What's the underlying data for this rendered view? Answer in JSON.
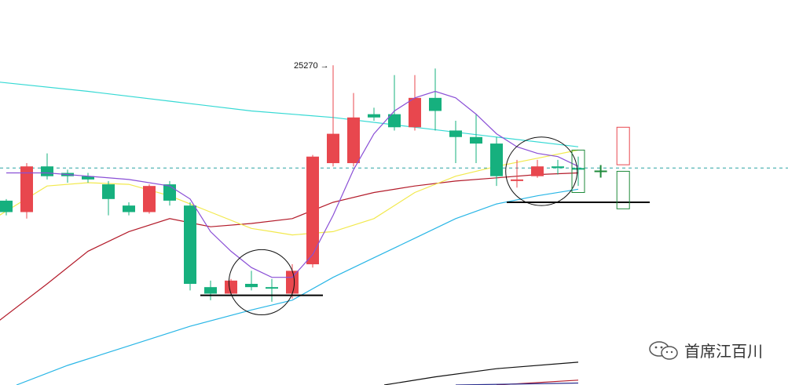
{
  "chart_data": {
    "type": "candlestick",
    "annotation": {
      "text": "25270 →",
      "price": 25270
    },
    "watermark": "首席江百川",
    "colors": {
      "up": "#e8474e",
      "down": "#16b07e",
      "ma_purple": "#8a4fd6",
      "ma_yellow": "#f2e94e",
      "ma_red": "#b31b2a",
      "ma_blue": "#29b6e6",
      "ma_cyan": "#36d9d4",
      "dashed_level": "#2aa3a3",
      "support_line": "#000000"
    },
    "ylim": [
      24290,
      25470
    ],
    "candles": [
      {
        "o": 24855,
        "c": 24820,
        "h": 24860,
        "l": 24810
      },
      {
        "o": 24820,
        "c": 24960,
        "h": 24970,
        "l": 24800
      },
      {
        "o": 24960,
        "c": 24930,
        "h": 25000,
        "l": 24920
      },
      {
        "o": 24940,
        "c": 24930,
        "h": 24950,
        "l": 24910
      },
      {
        "o": 24930,
        "c": 24920,
        "h": 24940,
        "l": 24910
      },
      {
        "o": 24905,
        "c": 24860,
        "h": 24915,
        "l": 24810
      },
      {
        "o": 24840,
        "c": 24820,
        "h": 24850,
        "l": 24810
      },
      {
        "o": 24820,
        "c": 24900,
        "h": 24905,
        "l": 24815
      },
      {
        "o": 24905,
        "c": 24855,
        "h": 24915,
        "l": 24840
      },
      {
        "o": 24840,
        "c": 24600,
        "h": 24850,
        "l": 24580
      },
      {
        "o": 24590,
        "c": 24570,
        "h": 24610,
        "l": 24550
      },
      {
        "o": 24570,
        "c": 24610,
        "h": 24615,
        "l": 24565
      },
      {
        "o": 24600,
        "c": 24590,
        "h": 24640,
        "l": 24580
      },
      {
        "o": 24590,
        "c": 24588,
        "h": 24615,
        "l": 24545
      },
      {
        "o": 24570,
        "c": 24640,
        "h": 24660,
        "l": 24555
      },
      {
        "o": 24660,
        "c": 24990,
        "h": 24995,
        "l": 24650
      },
      {
        "o": 24970,
        "c": 25060,
        "h": 25270,
        "l": 24960
      },
      {
        "o": 24970,
        "c": 25110,
        "h": 25185,
        "l": 24960
      },
      {
        "o": 25120,
        "c": 25110,
        "h": 25140,
        "l": 25100
      },
      {
        "o": 25120,
        "c": 25080,
        "h": 25240,
        "l": 25070
      },
      {
        "o": 25080,
        "c": 25170,
        "h": 25240,
        "l": 25070
      },
      {
        "o": 25170,
        "c": 25130,
        "h": 25260,
        "l": 25070
      },
      {
        "o": 25070,
        "c": 25050,
        "h": 25100,
        "l": 24970
      },
      {
        "o": 25050,
        "c": 25030,
        "h": 25120,
        "l": 24970
      },
      {
        "o": 25030,
        "c": 24930,
        "h": 25050,
        "l": 24900
      },
      {
        "o": 24920,
        "c": 24920,
        "h": 24980,
        "l": 24895
      },
      {
        "o": 24930,
        "c": 24960,
        "h": 24980,
        "l": 24925
      },
      {
        "o": 24960,
        "c": 24955,
        "h": 24980,
        "l": 24935
      },
      {
        "o": 24955,
        "c": 24950,
        "h": 24990,
        "l": 24900
      }
    ],
    "ma_purple": [
      [
        0,
        24940
      ],
      [
        2,
        24940
      ],
      [
        4,
        24930
      ],
      [
        6,
        24920
      ],
      [
        8,
        24900
      ],
      [
        9,
        24860
      ],
      [
        10,
        24760
      ],
      [
        11,
        24700
      ],
      [
        12,
        24650
      ],
      [
        13,
        24620
      ],
      [
        14,
        24620
      ],
      [
        15,
        24690
      ],
      [
        16,
        24810
      ],
      [
        17,
        24950
      ],
      [
        18,
        25060
      ],
      [
        19,
        25130
      ],
      [
        20,
        25170
      ],
      [
        21,
        25190
      ],
      [
        22,
        25170
      ],
      [
        23,
        25120
      ],
      [
        24,
        25060
      ],
      [
        25,
        25020
      ],
      [
        26,
        25000
      ],
      [
        27,
        24990
      ],
      [
        28,
        24960
      ]
    ],
    "ma_yellow": [
      [
        -0.6,
        24800
      ],
      [
        2,
        24900
      ],
      [
        4,
        24910
      ],
      [
        6,
        24905
      ],
      [
        8,
        24870
      ],
      [
        10,
        24820
      ],
      [
        12,
        24770
      ],
      [
        13,
        24760
      ],
      [
        14,
        24750
      ],
      [
        16,
        24760
      ],
      [
        18,
        24800
      ],
      [
        20,
        24880
      ],
      [
        22,
        24930
      ],
      [
        24,
        24960
      ],
      [
        26,
        24985
      ],
      [
        28,
        25010
      ]
    ],
    "ma_red": [
      [
        -0.6,
        24475
      ],
      [
        2,
        24600
      ],
      [
        4,
        24700
      ],
      [
        6,
        24760
      ],
      [
        8,
        24800
      ],
      [
        10,
        24775
      ],
      [
        12,
        24785
      ],
      [
        14,
        24800
      ],
      [
        16,
        24850
      ],
      [
        18,
        24880
      ],
      [
        20,
        24900
      ],
      [
        22,
        24915
      ],
      [
        24,
        24925
      ],
      [
        26,
        24935
      ],
      [
        28,
        24940
      ]
    ],
    "ma_blue": [
      [
        0.5,
        24290
      ],
      [
        3,
        24350
      ],
      [
        6,
        24410
      ],
      [
        9,
        24470
      ],
      [
        12,
        24520
      ],
      [
        14,
        24550
      ],
      [
        16,
        24620
      ],
      [
        18,
        24680
      ],
      [
        20,
        24740
      ],
      [
        22,
        24800
      ],
      [
        24,
        24845
      ],
      [
        26,
        24870
      ],
      [
        28,
        24890
      ]
    ],
    "ma_cyan": [
      [
        -0.6,
        25220
      ],
      [
        4,
        25190
      ],
      [
        8,
        25160
      ],
      [
        12,
        25130
      ],
      [
        16,
        25110
      ],
      [
        20,
        25080
      ],
      [
        24,
        25050
      ],
      [
        28,
        25020
      ]
    ],
    "ma_black": [
      [
        18.5,
        24290
      ],
      [
        21,
        24315
      ],
      [
        24,
        24340
      ],
      [
        28,
        24360
      ]
    ],
    "ma_darkred": [
      [
        24,
        24290
      ],
      [
        28,
        24305
      ]
    ],
    "ma_navy": [
      [
        22,
        24290
      ],
      [
        28,
        24296
      ]
    ],
    "dashed_level": 24955,
    "support_levels": [
      {
        "from": 9.5,
        "to": 15.5,
        "price": 24565
      },
      {
        "from": 24.5,
        "to": 31.5,
        "price": 24850
      }
    ],
    "ellipses": [
      {
        "cx": 12.5,
        "cy_price": 24605,
        "rx_bars": 1.6,
        "ry_price": 100
      },
      {
        "cx": 26.2,
        "cy_price": 24945,
        "rx_bars": 1.75,
        "ry_price": 105
      }
    ],
    "projection_boxes": [
      {
        "x": 28.0,
        "top": 25010,
        "bottom": 24880,
        "color": "#1e8a3a"
      },
      {
        "x": 30.2,
        "top": 25080,
        "bottom": 24965,
        "color": "#e8474e"
      },
      {
        "x": 30.2,
        "top": 24945,
        "bottom": 24830,
        "color": "#1e8a3a"
      }
    ],
    "cross_mark": {
      "x": 29.1,
      "price": 24945
    }
  }
}
